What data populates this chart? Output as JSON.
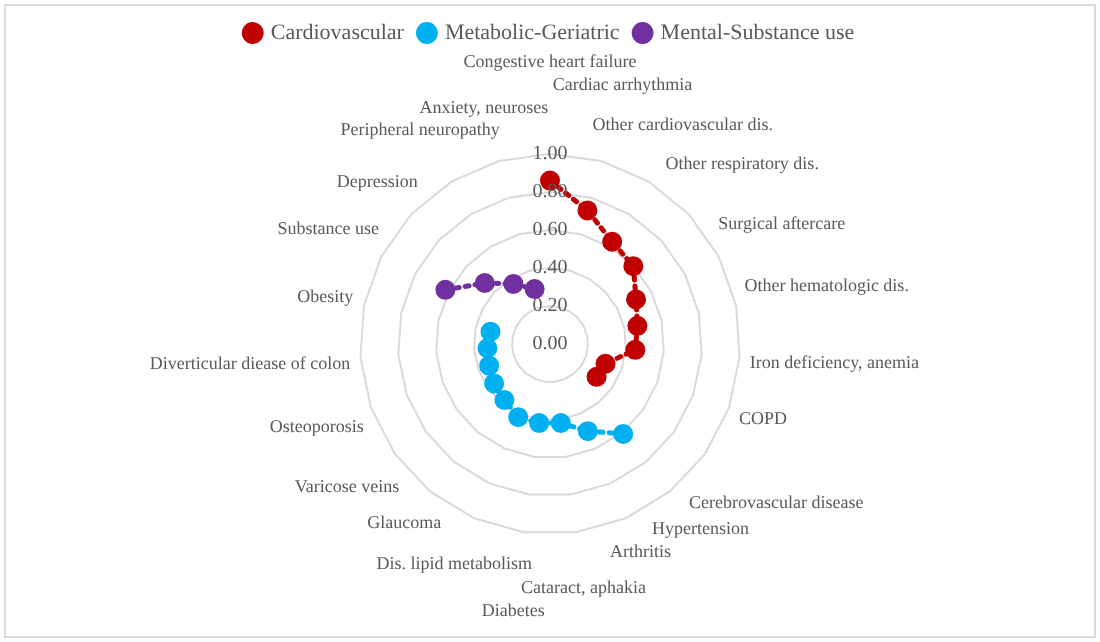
{
  "chart_data": {
    "type": "radar",
    "categories": [
      "Congestive heart failure",
      "Cardiac arrhythmia",
      "Other cardiovascular dis.",
      "Other respiratory dis.",
      "Surgical aftercare",
      "Other hematologic dis.",
      "Iron deficiency, anemia",
      "COPD",
      "Cerebrovascular disease",
      "Hypertension",
      "Arthritis",
      "Cataract, aphakia",
      "Diabetes",
      "Dis. lipid metabolism",
      "Glaucoma",
      "Varicose veins",
      "Osteoporosis",
      "Diverticular diease of colon",
      "Obesity",
      "Substance use",
      "Depression",
      "Peripheral neuropathy",
      "Anxiety, neuroses"
    ],
    "series": [
      {
        "name": "Cardiovascular",
        "color": "#c00000",
        "values": [
          0.86,
          0.73,
          0.63,
          0.6,
          0.51,
          0.47,
          0.45,
          0.31,
          0.3,
          null,
          null,
          null,
          null,
          null,
          null,
          null,
          null,
          null,
          null,
          null,
          null,
          null,
          null
        ]
      },
      {
        "name": "Metabolic-Geriatric",
        "color": "#00b0f0",
        "values": [
          null,
          null,
          null,
          null,
          null,
          null,
          null,
          null,
          null,
          0.61,
          0.5,
          0.42,
          0.42,
          0.42,
          0.38,
          0.36,
          0.34,
          0.33,
          0.32,
          null,
          null,
          null,
          null
        ]
      },
      {
        "name": "Mental-Substance use",
        "color": "#7030a0",
        "values": [
          null,
          null,
          null,
          null,
          null,
          null,
          null,
          null,
          null,
          null,
          null,
          null,
          null,
          null,
          null,
          null,
          null,
          null,
          null,
          0.62,
          0.47,
          0.37,
          0.3
        ]
      }
    ],
    "ylim": [
      0,
      1
    ],
    "yticks": [
      {
        "value": 0,
        "label": "0.00"
      },
      {
        "value": 0.2,
        "label": "0.20"
      },
      {
        "value": 0.4,
        "label": "0.40"
      },
      {
        "value": 0.6,
        "label": "0.60"
      },
      {
        "value": 0.8,
        "label": "0.80"
      },
      {
        "value": 1,
        "label": "1.00"
      }
    ],
    "grid": true,
    "legend": "top",
    "marker": "circle",
    "line_style": "dotted"
  }
}
